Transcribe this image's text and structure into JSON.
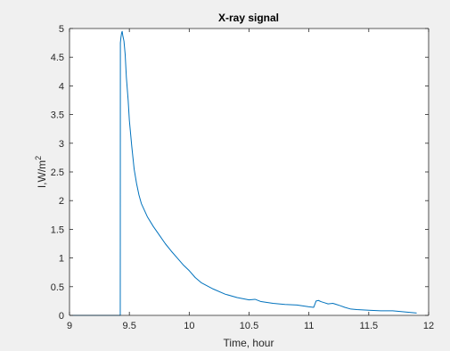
{
  "chart_data": {
    "type": "line",
    "title": "X-ray signal",
    "xlabel": "Time, hour",
    "ylabel_base": "I,W/m",
    "ylabel_sup": "2",
    "xlim": [
      9,
      12
    ],
    "ylim": [
      0,
      5
    ],
    "xticks": [
      9,
      9.5,
      10,
      10.5,
      11,
      11.5,
      12
    ],
    "yticks": [
      0,
      0.5,
      1,
      1.5,
      2,
      2.5,
      3,
      3.5,
      4,
      4.5,
      5
    ],
    "grid": false,
    "legend": "none",
    "line_color": "#0072bd",
    "series": [
      {
        "x": [
          9.0,
          9.2,
          9.42,
          9.424,
          9.425,
          9.43,
          9.435,
          9.44,
          9.445,
          9.455,
          9.465,
          9.475,
          9.49,
          9.5,
          9.52,
          9.54,
          9.56,
          9.58,
          9.6,
          9.65,
          9.7,
          9.75,
          9.8,
          9.85,
          9.9,
          9.95,
          10.0,
          10.05,
          10.1,
          10.2,
          10.3,
          10.4,
          10.5,
          10.55,
          10.6,
          10.7,
          10.8,
          10.9,
          11.0,
          11.04,
          11.06,
          11.08,
          11.1,
          11.13,
          11.16,
          11.2,
          11.23,
          11.26,
          11.3,
          11.35,
          11.4,
          11.5,
          11.6,
          11.7,
          11.8,
          11.9
        ],
        "y": [
          0.0,
          0.0,
          0.0,
          0.0,
          4.75,
          4.85,
          4.92,
          4.95,
          4.88,
          4.78,
          4.55,
          4.15,
          3.75,
          3.4,
          2.95,
          2.55,
          2.3,
          2.1,
          1.95,
          1.72,
          1.55,
          1.4,
          1.25,
          1.12,
          1.0,
          0.88,
          0.78,
          0.66,
          0.57,
          0.46,
          0.37,
          0.31,
          0.27,
          0.28,
          0.24,
          0.21,
          0.19,
          0.18,
          0.15,
          0.14,
          0.25,
          0.26,
          0.24,
          0.22,
          0.2,
          0.21,
          0.19,
          0.17,
          0.14,
          0.11,
          0.1,
          0.09,
          0.08,
          0.08,
          0.06,
          0.04
        ]
      }
    ]
  }
}
